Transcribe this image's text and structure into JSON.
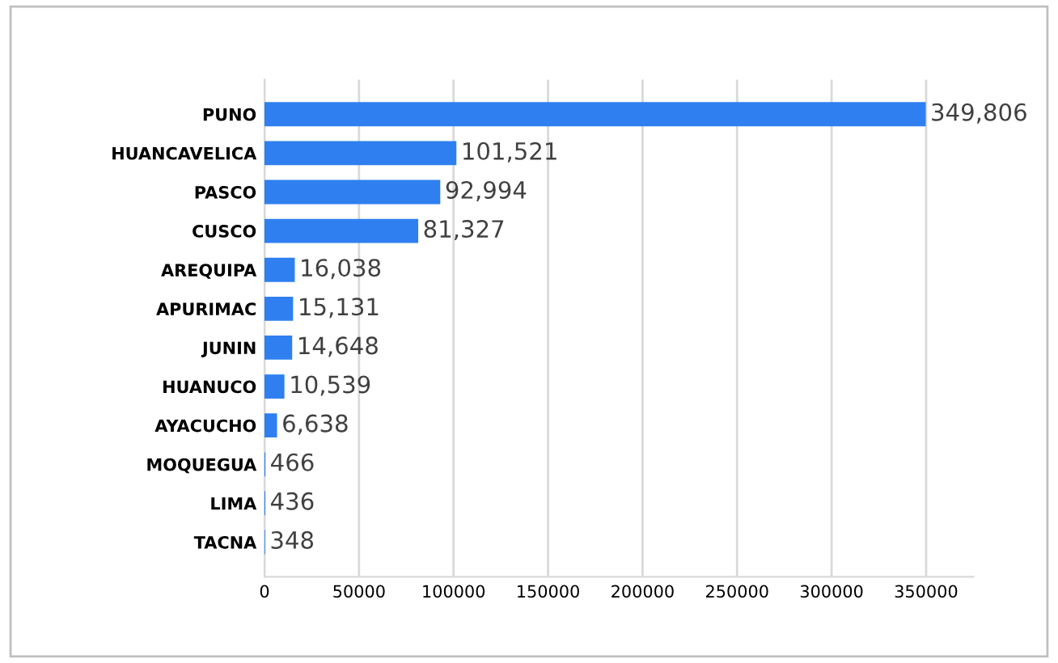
{
  "chart_data": {
    "type": "bar",
    "orientation": "horizontal",
    "categories": [
      "PUNO",
      "HUANCAVELICA",
      "PASCO",
      "CUSCO",
      "AREQUIPA",
      "APURIMAC",
      "JUNIN",
      "HUANUCO",
      "AYACUCHO",
      "MOQUEGUA",
      "LIMA",
      "TACNA"
    ],
    "values": [
      349806,
      101521,
      92994,
      81327,
      16038,
      15131,
      14648,
      10539,
      6638,
      466,
      436,
      348
    ],
    "value_labels": [
      "349,806",
      "101,521",
      "92,994",
      "81,327",
      "16,038",
      "15,131",
      "14,648",
      "10,539",
      "6,638",
      "466",
      "436",
      "348"
    ],
    "color": "#2f7ff0",
    "xlim": [
      0,
      375000
    ],
    "xticks": [
      0,
      50000,
      100000,
      150000,
      200000,
      250000,
      300000,
      350000
    ],
    "grid": "x",
    "legend": false
  }
}
